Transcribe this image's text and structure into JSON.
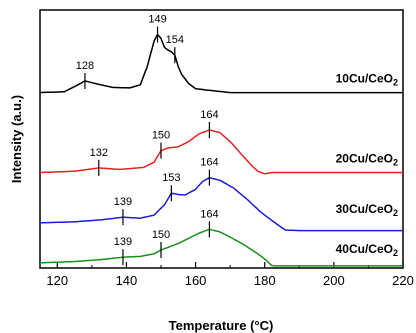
{
  "chart_data": {
    "type": "line",
    "xlabel": "Temperature (°C)",
    "ylabel": "Intensity (a.u.)",
    "xlim": [
      115,
      220
    ],
    "x_ticks": [
      120,
      140,
      160,
      180,
      200,
      220
    ],
    "y_tick_labels": "none",
    "grid": false,
    "series": [
      {
        "name": "10Cu/CeO",
        "name_sub": "2",
        "color": "#000000",
        "baseline": 0.09,
        "points": [
          [
            115,
            0.0
          ],
          [
            122,
            0.003
          ],
          [
            126,
            0.03
          ],
          [
            128,
            0.045
          ],
          [
            131,
            0.035
          ],
          [
            136,
            0.02
          ],
          [
            141,
            0.018
          ],
          [
            144,
            0.03
          ],
          [
            146,
            0.1
          ],
          [
            148,
            0.2
          ],
          [
            149,
            0.225
          ],
          [
            150,
            0.21
          ],
          [
            151,
            0.175
          ],
          [
            152,
            0.165
          ],
          [
            153,
            0.158
          ],
          [
            154,
            0.145
          ],
          [
            155,
            0.1
          ],
          [
            156,
            0.07
          ],
          [
            158,
            0.035
          ],
          [
            160,
            0.015
          ],
          [
            163,
            0.01
          ],
          [
            170,
            0.0
          ],
          [
            220,
            0.0
          ]
        ],
        "peaks": [
          {
            "x": 128,
            "label": "128"
          },
          {
            "x": 149,
            "label": "149"
          },
          {
            "x": 154,
            "label": "154"
          }
        ]
      },
      {
        "name": "20Cu/CeO",
        "name_sub": "2",
        "color": "#e8201e",
        "baseline": 0.13,
        "points": [
          [
            115,
            0.0
          ],
          [
            125,
            0.005
          ],
          [
            132,
            0.018
          ],
          [
            138,
            0.012
          ],
          [
            145,
            0.02
          ],
          [
            148,
            0.04
          ],
          [
            150,
            0.085
          ],
          [
            152,
            0.095
          ],
          [
            155,
            0.1
          ],
          [
            158,
            0.12
          ],
          [
            161,
            0.15
          ],
          [
            164,
            0.165
          ],
          [
            167,
            0.155
          ],
          [
            170,
            0.12
          ],
          [
            173,
            0.075
          ],
          [
            176,
            0.03
          ],
          [
            178,
            0.005
          ],
          [
            180,
            -0.005
          ],
          [
            182,
            0.0
          ],
          [
            220,
            0.0
          ]
        ],
        "peaks": [
          {
            "x": 132,
            "label": "132"
          },
          {
            "x": 150,
            "label": "150"
          },
          {
            "x": 164,
            "label": "164"
          }
        ]
      },
      {
        "name": "30Cu/CeO",
        "name_sub": "2",
        "color": "#1c1cde",
        "baseline": 0.1,
        "points": [
          [
            115,
            0.0
          ],
          [
            125,
            0.004
          ],
          [
            133,
            0.012
          ],
          [
            139,
            0.022
          ],
          [
            144,
            0.018
          ],
          [
            148,
            0.03
          ],
          [
            151,
            0.07
          ],
          [
            153,
            0.115
          ],
          [
            155,
            0.11
          ],
          [
            157,
            0.108
          ],
          [
            160,
            0.13
          ],
          [
            162,
            0.16
          ],
          [
            164,
            0.175
          ],
          [
            167,
            0.165
          ],
          [
            171,
            0.135
          ],
          [
            175,
            0.09
          ],
          [
            179,
            0.04
          ],
          [
            183,
            0.0
          ],
          [
            186,
            -0.028
          ],
          [
            190,
            -0.03
          ],
          [
            220,
            -0.03
          ]
        ],
        "peaks": [
          {
            "x": 139,
            "label": "139"
          },
          {
            "x": 153,
            "label": "153"
          },
          {
            "x": 164,
            "label": "164"
          }
        ]
      },
      {
        "name": "40Cu/CeO",
        "name_sub": "2",
        "color": "#1a8f1a",
        "baseline": 0.18,
        "points": [
          [
            115,
            0.0
          ],
          [
            125,
            0.005
          ],
          [
            133,
            0.013
          ],
          [
            139,
            0.022
          ],
          [
            144,
            0.025
          ],
          [
            148,
            0.035
          ],
          [
            150,
            0.05
          ],
          [
            152,
            0.06
          ],
          [
            155,
            0.075
          ],
          [
            158,
            0.095
          ],
          [
            161,
            0.115
          ],
          [
            164,
            0.13
          ],
          [
            167,
            0.12
          ],
          [
            170,
            0.1
          ],
          [
            174,
            0.07
          ],
          [
            178,
            0.035
          ],
          [
            180,
            0.015
          ],
          [
            182,
            -0.01
          ],
          [
            183,
            -0.012
          ],
          [
            220,
            -0.012
          ]
        ],
        "peaks": [
          {
            "x": 139,
            "label": "139"
          },
          {
            "x": 150,
            "label": "150"
          },
          {
            "x": 164,
            "label": "164"
          }
        ]
      }
    ]
  }
}
